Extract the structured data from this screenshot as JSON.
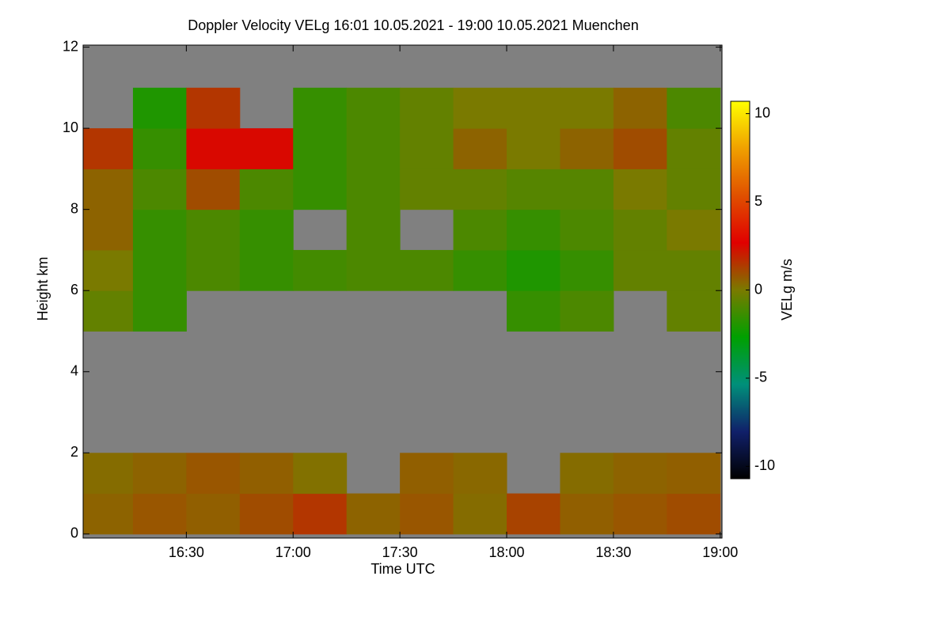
{
  "chart_data": {
    "type": "heatmap",
    "title": "Doppler Velocity VELg   16:01 10.05.2021 - 19:00 10.05.2021 Muenchen",
    "xlabel": "Time UTC",
    "ylabel": "Height km",
    "zlabel": "VELg m/s",
    "x": [
      16.125,
      16.375,
      16.625,
      16.875,
      17.125,
      17.375,
      17.625,
      17.875,
      18.125,
      18.375,
      18.625,
      18.875
    ],
    "y": [
      0.5,
      1.5,
      2.5,
      3.5,
      4.5,
      5.5,
      6.5,
      7.5,
      8.5,
      9.5,
      10.5,
      11.5
    ],
    "z": [
      [
        0.5,
        0.8,
        0.6,
        1.0,
        1.5,
        0.5,
        0.8,
        0.3,
        1.2,
        0.6,
        0.8,
        1.0
      ],
      [
        0.3,
        0.5,
        0.8,
        0.6,
        0.2,
        null,
        0.6,
        0.4,
        null,
        0.3,
        0.5,
        0.6
      ],
      [
        null,
        null,
        null,
        null,
        null,
        null,
        null,
        null,
        null,
        null,
        null,
        null
      ],
      [
        null,
        null,
        null,
        null,
        null,
        null,
        null,
        null,
        null,
        null,
        null,
        null
      ],
      [
        null,
        null,
        null,
        null,
        null,
        null,
        null,
        null,
        null,
        null,
        null,
        null
      ],
      [
        -0.5,
        -1.5,
        null,
        null,
        null,
        null,
        null,
        null,
        -1.5,
        -1,
        null,
        -0.5
      ],
      [
        0,
        -1.5,
        -1,
        -1.5,
        -1.2,
        -1,
        -1,
        -1.5,
        -2,
        -1.5,
        -0.5,
        -0.5
      ],
      [
        0.5,
        -1.5,
        -1,
        -1.5,
        null,
        -1,
        null,
        -1,
        -1.5,
        -1,
        -0.5,
        0
      ],
      [
        0.5,
        -1,
        1,
        -1,
        -1.5,
        -1,
        -0.5,
        -0.5,
        -0.8,
        -0.8,
        0,
        -0.5
      ],
      [
        1.5,
        -1.5,
        2.5,
        2.5,
        -1.5,
        -1,
        -0.5,
        0.5,
        0,
        0.5,
        1,
        -0.5
      ],
      [
        null,
        -2,
        1.5,
        null,
        -1.5,
        -1,
        -0.5,
        0,
        0,
        0,
        0.5,
        -1
      ],
      [
        null,
        null,
        null,
        null,
        null,
        null,
        null,
        null,
        null,
        null,
        null,
        null
      ]
    ],
    "xlim": [
      16.0167,
      19.0083
    ],
    "xticks": [
      {
        "value": 16.5,
        "label": "16:30"
      },
      {
        "value": 17,
        "label": "17:00"
      },
      {
        "value": 17.5,
        "label": "17:30"
      },
      {
        "value": 18,
        "label": "18:00"
      },
      {
        "value": 18.5,
        "label": "18:30"
      },
      {
        "value": 19,
        "label": "19:00"
      }
    ],
    "ylim": [
      -0.1,
      12.05
    ],
    "yticks": [
      0,
      2,
      4,
      6,
      8,
      10,
      12
    ],
    "zlim": [
      -10.7,
      10.7
    ],
    "zticks": [
      -10,
      -5,
      0,
      5,
      10
    ],
    "missing_color": "#808080",
    "colormap": [
      "#000000",
      "#10206a",
      "#00907a",
      "#00a000",
      "#7a7a00",
      "#e00000",
      "#e05000",
      "#f0a000",
      "#ffff00"
    ]
  }
}
